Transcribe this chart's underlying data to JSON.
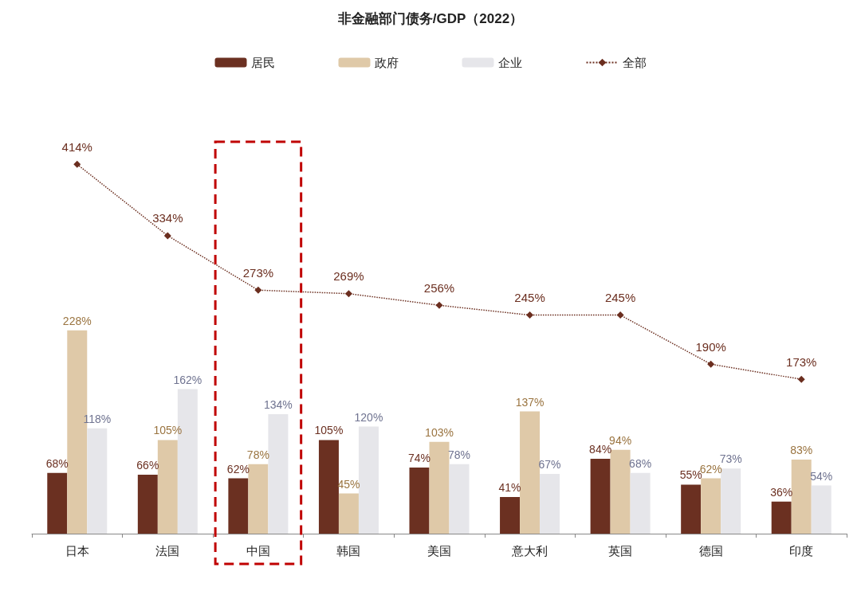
{
  "chart_data": {
    "type": "bar",
    "title": "非金融部门债务/GDP（2022）",
    "categories": [
      "日本",
      "法国",
      "中国",
      "韩国",
      "美国",
      "意大利",
      "英国",
      "德国",
      "印度"
    ],
    "series": [
      {
        "name": "居民",
        "color": "#6b3021",
        "values": [
          68,
          66,
          62,
          105,
          74,
          41,
          84,
          55,
          36
        ],
        "value_labels": [
          "68%",
          "66%",
          "62%",
          "105%",
          "74%",
          "41%",
          "84%",
          "55%",
          "36%"
        ]
      },
      {
        "name": "政府",
        "color": "#dfc9a8",
        "values": [
          228,
          105,
          78,
          45,
          103,
          137,
          94,
          62,
          83
        ],
        "value_labels": [
          "228%",
          "105%",
          "78%",
          "45%",
          "103%",
          "137%",
          "94%",
          "62%",
          "83%"
        ]
      },
      {
        "name": "企业",
        "color": "#e6e6ea",
        "values": [
          118,
          162,
          134,
          120,
          78,
          67,
          68,
          73,
          54
        ],
        "value_labels": [
          "118%",
          "162%",
          "134%",
          "120%",
          "78%",
          "67%",
          "68%",
          "73%",
          "54%"
        ]
      },
      {
        "name": "全部",
        "type": "line",
        "color": "#6b2e1f",
        "marker": "diamond",
        "line_style": "dotted",
        "values": [
          414,
          334,
          273,
          269,
          256,
          245,
          245,
          190,
          173
        ],
        "value_labels": [
          "414%",
          "334%",
          "273%",
          "269%",
          "256%",
          "245%",
          "245%",
          "190%",
          "173%"
        ]
      }
    ],
    "tick_labels": "x",
    "legend": "top",
    "grid": false
  }
}
